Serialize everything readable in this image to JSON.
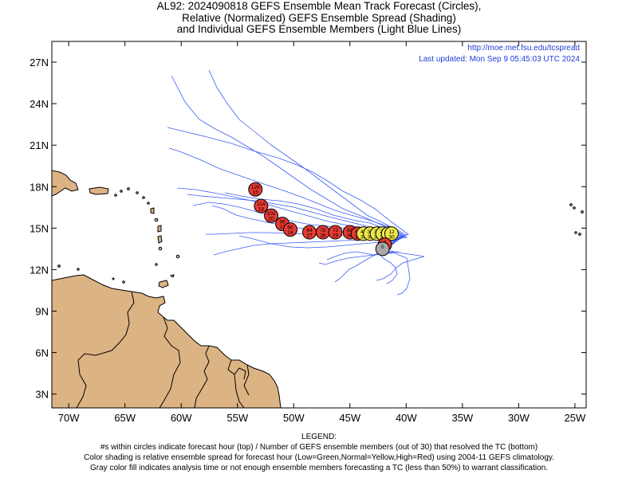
{
  "title": {
    "line1": "AL92: 2024090818 GEFS Ensemble Mean Track Forecast (Circles),",
    "line2": "Relative (Normalized) GEFS Ensemble Spread (Shading)",
    "line3": "and Individual GEFS Ensemble Members (Light Blue Lines)"
  },
  "credit": {
    "url": "http://moe.met.fsu.edu/tcspread",
    "updated": "Last updated: Mon Sep 9 05:45:03 UTC 2024"
  },
  "axes": {
    "lon_min": -71.5,
    "lon_max": -24,
    "lat_min": 2,
    "lat_max": 28.5,
    "x_ticks": [
      {
        "lon": -70,
        "label": "70W"
      },
      {
        "lon": -65,
        "label": "65W"
      },
      {
        "lon": -60,
        "label": "60W"
      },
      {
        "lon": -55,
        "label": "55W"
      },
      {
        "lon": -50,
        "label": "50W"
      },
      {
        "lon": -45,
        "label": "45W"
      },
      {
        "lon": -40,
        "label": "40W"
      },
      {
        "lon": -35,
        "label": "35W"
      },
      {
        "lon": -30,
        "label": "30W"
      },
      {
        "lon": -25,
        "label": "25W"
      }
    ],
    "y_ticks": [
      {
        "lat": 3,
        "label": "3N"
      },
      {
        "lat": 6,
        "label": "6N"
      },
      {
        "lat": 9,
        "label": "9N"
      },
      {
        "lat": 12,
        "label": "12N"
      },
      {
        "lat": 15,
        "label": "15N"
      },
      {
        "lat": 18,
        "label": "18N"
      },
      {
        "lat": 21,
        "label": "21N"
      },
      {
        "lat": 24,
        "label": "24N"
      },
      {
        "lat": 27,
        "label": "27N"
      }
    ]
  },
  "colors": {
    "land": "#dcb383",
    "coast": "#000000",
    "member_track": "#3b5ef5",
    "high_spread": "#e63a32",
    "normal_spread": "#efe84a",
    "analysis": "#a8a8a8"
  },
  "mean_track": [
    {
      "hour": "0",
      "members": "",
      "lon": -42.1,
      "lat": 13.5,
      "color": "#a8a8a8"
    },
    {
      "hour": "6",
      "members": "29",
      "lon": -41.9,
      "lat": 13.8,
      "color": "#e63a32"
    },
    {
      "hour": "12",
      "members": "30",
      "lon": -41.3,
      "lat": 14.6,
      "color": "#efe84a"
    },
    {
      "hour": "18",
      "members": "30",
      "lon": -41.6,
      "lat": 14.6,
      "color": "#efe84a"
    },
    {
      "hour": "24",
      "members": "30",
      "lon": -42.1,
      "lat": 14.6,
      "color": "#efe84a"
    },
    {
      "hour": "30",
      "members": "30",
      "lon": -42.6,
      "lat": 14.6,
      "color": "#efe84a"
    },
    {
      "hour": "36",
      "members": "30",
      "lon": -43.2,
      "lat": 14.6,
      "color": "#efe84a"
    },
    {
      "hour": "42",
      "members": "30",
      "lon": -43.8,
      "lat": 14.6,
      "color": "#efe84a"
    },
    {
      "hour": "48",
      "members": "30",
      "lon": -44.3,
      "lat": 14.6,
      "color": "#e63a32"
    },
    {
      "hour": "60",
      "members": "30",
      "lon": -45.0,
      "lat": 14.7,
      "color": "#e63a32"
    },
    {
      "hour": "72",
      "members": "29",
      "lon": -46.3,
      "lat": 14.7,
      "color": "#e63a32"
    },
    {
      "hour": "78",
      "members": "28",
      "lon": -47.4,
      "lat": 14.7,
      "color": "#e63a32"
    },
    {
      "hour": "84",
      "members": "27",
      "lon": -48.6,
      "lat": 14.7,
      "color": "#e63a32"
    },
    {
      "hour": "90",
      "members": "24",
      "lon": -50.3,
      "lat": 14.9,
      "color": "#e63a32"
    },
    {
      "hour": "96",
      "members": "22",
      "lon": -51.0,
      "lat": 15.3,
      "color": "#e63a32"
    },
    {
      "hour": "102",
      "members": "20",
      "lon": -52.0,
      "lat": 15.9,
      "color": "#e63a32"
    },
    {
      "hour": "114",
      "members": "18",
      "lon": -52.9,
      "lat": 16.6,
      "color": "#e63a32"
    },
    {
      "hour": "126",
      "members": "15",
      "lon": -53.4,
      "lat": 17.8,
      "color": "#e63a32"
    }
  ],
  "legend": {
    "heading": "LEGEND:",
    "line1": "#s within circles indicate forecast hour (top) / Number of GEFS ensemble members (out of 30) that resolved the TC (bottom)",
    "line2": "Color shading is relative ensemble spread for forecast hour (Low=Green,Normal=Yellow,High=Red) using 2004-11 GEFS climatology.",
    "line3": "Gray color fill indicates analysis time or not enough ensemble members forecasting a TC (less than 50%) to warrant classification."
  }
}
